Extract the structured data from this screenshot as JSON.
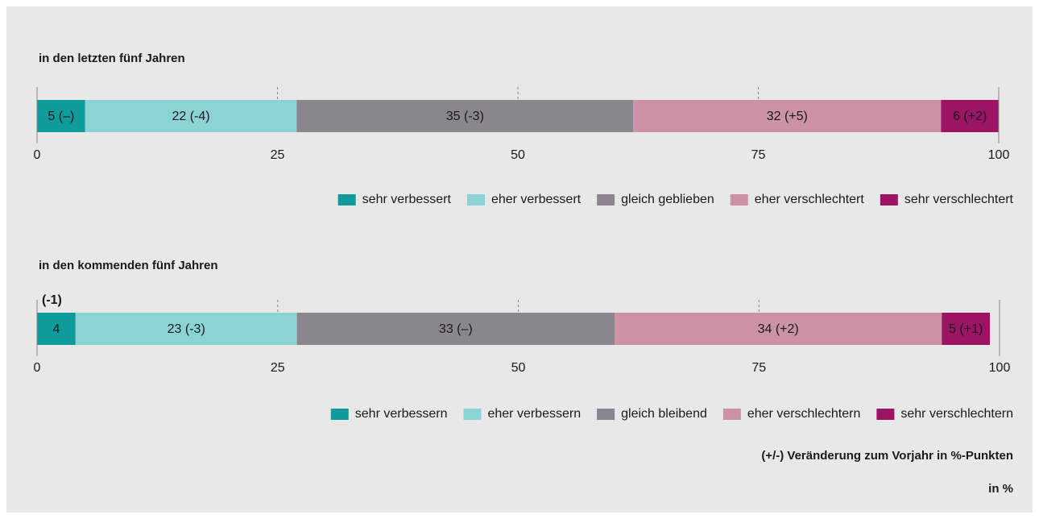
{
  "chart_data": [
    {
      "type": "bar",
      "orientation": "horizontal",
      "stacked": true,
      "title": "in den letzten fünf Jahren",
      "xlim": [
        0,
        100
      ],
      "xticks": [
        0,
        25,
        50,
        75,
        100
      ],
      "series": [
        {
          "name": "sehr verbessert",
          "color": "#0f9a9b",
          "values": [
            5
          ],
          "value_labels": [
            "5 (–)"
          ]
        },
        {
          "name": "eher verbessert",
          "color": "#8cd3d6",
          "values": [
            22
          ],
          "value_labels": [
            "22 (-4)"
          ]
        },
        {
          "name": "gleich geblieben",
          "color": "#8a868f",
          "values": [
            35
          ],
          "value_labels": [
            "35 (-3)"
          ]
        },
        {
          "name": "eher verschlechtert",
          "color": "#cc93a6",
          "values": [
            32
          ],
          "value_labels": [
            "32 (+5)"
          ]
        },
        {
          "name": "sehr verschlechtert",
          "color": "#9c1464",
          "values": [
            6
          ],
          "value_labels": [
            "6 (+2)"
          ]
        }
      ]
    },
    {
      "type": "bar",
      "orientation": "horizontal",
      "stacked": true,
      "title": "in den kommenden fünf Jahren",
      "xlim": [
        0,
        100
      ],
      "xticks": [
        0,
        25,
        50,
        75,
        100
      ],
      "series": [
        {
          "name": "sehr verbessern",
          "color": "#0f9a9b",
          "values": [
            4
          ],
          "value_labels": [
            "4"
          ],
          "annotation": "(-1)"
        },
        {
          "name": "eher verbessern",
          "color": "#8cd3d6",
          "values": [
            23
          ],
          "value_labels": [
            "23 (-3)"
          ]
        },
        {
          "name": "gleich bleibend",
          "color": "#8a868f",
          "values": [
            33
          ],
          "value_labels": [
            "33 (–)"
          ]
        },
        {
          "name": "eher verschlechtern",
          "color": "#cc93a6",
          "values": [
            34
          ],
          "value_labels": [
            "34 (+2)"
          ]
        },
        {
          "name": "sehr verschlechtern",
          "color": "#9c1464",
          "values": [
            5
          ],
          "value_labels": [
            "5 (+1)"
          ]
        }
      ]
    }
  ],
  "notes": [
    "(+/-) Veränderung zum Vorjahr in %-Punkten",
    "in %"
  ]
}
